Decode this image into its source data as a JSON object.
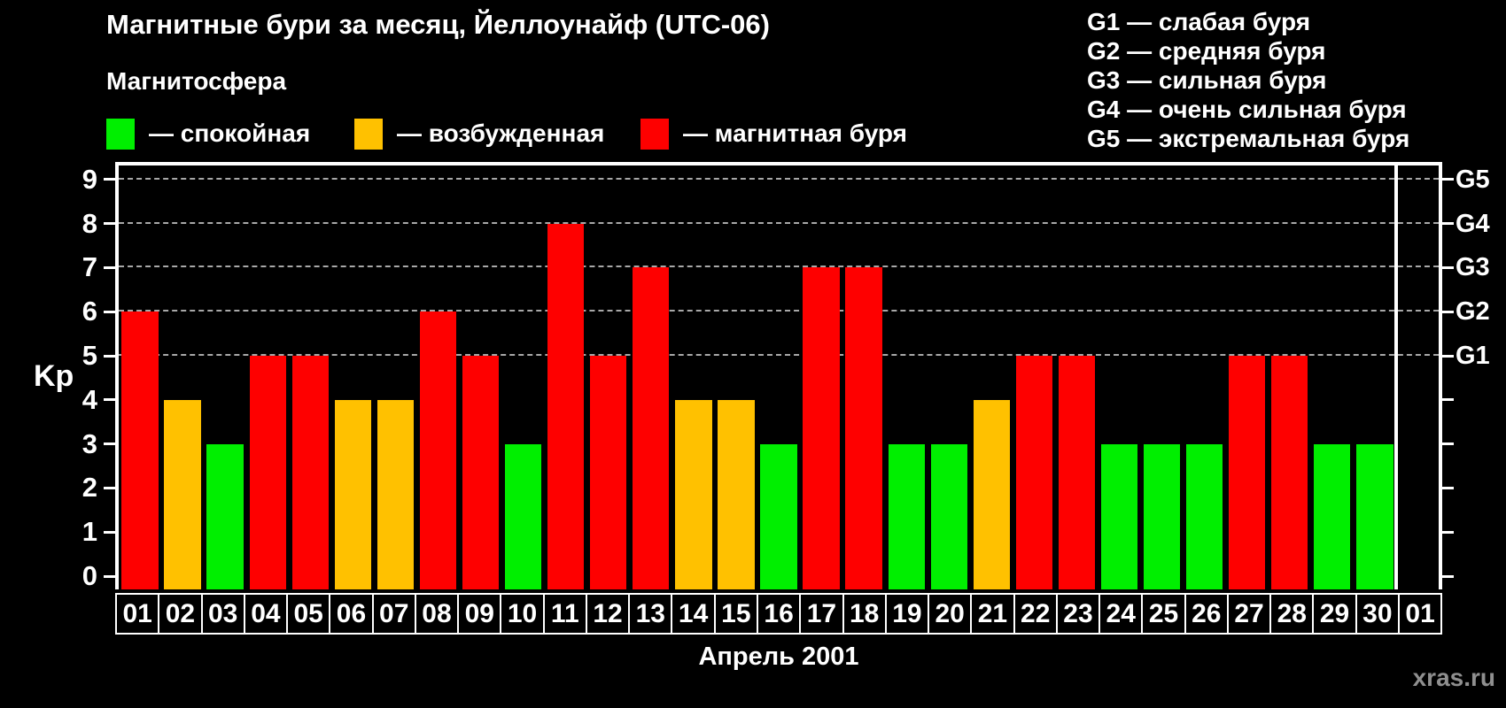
{
  "title": "Магнитные бури за месяц, Йеллоунайф (UTC-06)",
  "legend": {
    "heading": "Магнитосфера",
    "items": [
      {
        "key": "quiet",
        "label": "— спокойная",
        "color": "#00ef00"
      },
      {
        "key": "unsettled",
        "label": "— возбужденная",
        "color": "#ffc100"
      },
      {
        "key": "storm",
        "label": "— магнитная буря",
        "color": "#fe0000"
      }
    ]
  },
  "g_legend": [
    "G1 — слабая буря",
    "G2 — средняя буря",
    "G3 — сильная буря",
    "G4 — очень сильная буря",
    "G5 — экстремальная буря"
  ],
  "watermark": "xras.ru",
  "chart_data": {
    "type": "bar",
    "title": "Магнитные бури за месяц, Йеллоунайф (UTC-06)",
    "xlabel": "Апрель 2001",
    "ylabel": "Kp",
    "ylim": [
      0,
      9.4
    ],
    "grid": "dashed horizontal lines at Kp 5-9 (G1-G5 levels)",
    "categories": [
      "01",
      "02",
      "03",
      "04",
      "05",
      "06",
      "07",
      "08",
      "09",
      "10",
      "11",
      "12",
      "13",
      "14",
      "15",
      "16",
      "17",
      "18",
      "19",
      "20",
      "21",
      "22",
      "23",
      "24",
      "25",
      "26",
      "27",
      "28",
      "29",
      "30",
      "01"
    ],
    "values": [
      6,
      4,
      3,
      5,
      5,
      4,
      4,
      6,
      5,
      3,
      8,
      5,
      7,
      4,
      4,
      3,
      7,
      7,
      3,
      3,
      4,
      5,
      5,
      3,
      3,
      3,
      5,
      5,
      3,
      3,
      null
    ],
    "day_status": [
      "storm",
      "unsettled",
      "quiet",
      "storm",
      "storm",
      "unsettled",
      "unsettled",
      "storm",
      "storm",
      "quiet",
      "storm",
      "storm",
      "storm",
      "unsettled",
      "unsettled",
      "quiet",
      "storm",
      "storm",
      "quiet",
      "quiet",
      "unsettled",
      "storm",
      "storm",
      "quiet",
      "quiet",
      "quiet",
      "storm",
      "storm",
      "quiet",
      "quiet",
      null
    ],
    "colors": {
      "quiet": "#00ef00",
      "unsettled": "#ffc100",
      "storm": "#fe0000"
    },
    "left_ticks": [
      0,
      1,
      2,
      3,
      4,
      5,
      6,
      7,
      8,
      9
    ],
    "right_ticks": [
      0,
      1,
      2,
      3,
      4,
      5,
      6,
      7,
      8,
      9
    ],
    "right_tick_labels": {
      "5": "G1",
      "6": "G2",
      "7": "G3",
      "8": "G4",
      "9": "G5"
    },
    "grid_levels": [
      5,
      6,
      7,
      8,
      9
    ],
    "month_boundary_index": 30,
    "legend_position": "top"
  }
}
